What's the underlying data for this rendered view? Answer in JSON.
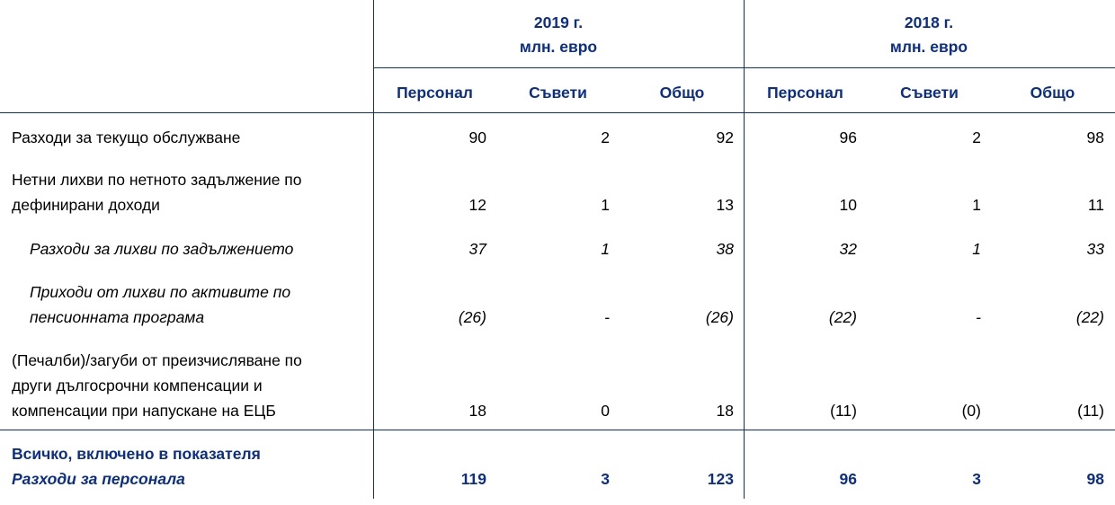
{
  "table": {
    "groups": [
      {
        "year": "2019 г.",
        "unit": "млн. евро"
      },
      {
        "year": "2018 г.",
        "unit": "млн. евро"
      }
    ],
    "columns": [
      "Персонал",
      "Съвети",
      "Общо",
      "Персонал",
      "Съвети",
      "Общо"
    ],
    "rows": [
      {
        "label": [
          "Разходи за текущо обслужване"
        ],
        "values": [
          "90",
          "2",
          "92",
          "96",
          "2",
          "98"
        ]
      },
      {
        "label": [
          "Нетни лихви по нетното задължение по",
          "дефинирани доходи"
        ],
        "values": [
          "12",
          "1",
          "13",
          "10",
          "1",
          "11"
        ]
      },
      {
        "label": [
          "Разходи за лихви по задължението"
        ],
        "values": [
          "37",
          "1",
          "38",
          "32",
          "1",
          "33"
        ]
      },
      {
        "label": [
          "Приходи от лихви по активите по",
          "пенсионната програма"
        ],
        "values": [
          "(26)",
          "-",
          "(26)",
          "(22)",
          "-",
          "(22)"
        ]
      },
      {
        "label": [
          "(Печалби)/загуби от преизчисляване по",
          "други дългосрочни компенсации и",
          "компенсации при напускане на ЕЦБ"
        ],
        "values": [
          "18",
          "0",
          "18",
          "(11)",
          "(0)",
          "(11)"
        ]
      },
      {
        "label": [
          "Всичко, включено в показателя",
          "Разходи за персонала"
        ],
        "values": [
          "119",
          "3",
          "123",
          "96",
          "3",
          "98"
        ]
      }
    ]
  }
}
